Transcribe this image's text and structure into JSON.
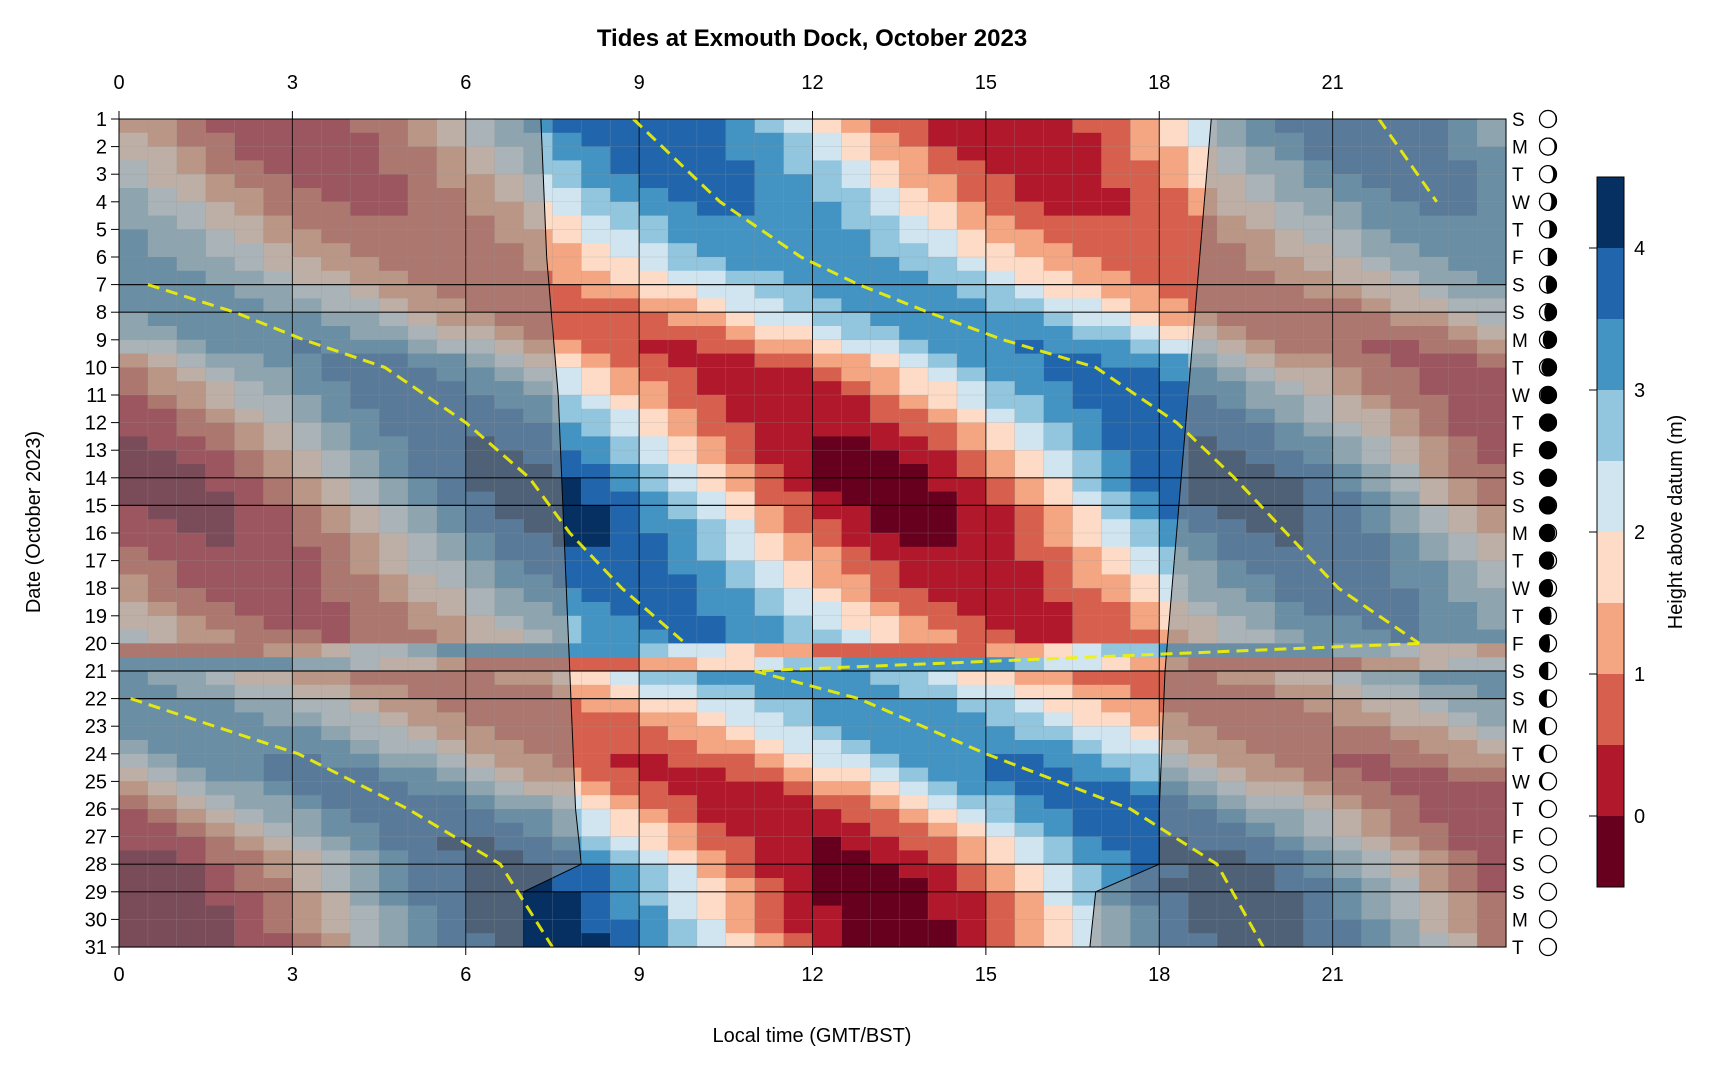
{
  "chart_data": {
    "type": "heatmap",
    "title": "Tides at Exmouth Dock, October 2023",
    "xlabel": "Local time (GMT/BST)",
    "ylabel": "Date (October 2023)",
    "xlim": [
      0,
      24
    ],
    "ylim": [
      1,
      31
    ],
    "x_ticks": [
      0,
      3,
      6,
      9,
      12,
      15,
      18,
      21
    ],
    "x_tick_labels": [
      "0",
      "3",
      "6",
      "9",
      "12",
      "15",
      "18",
      "21"
    ],
    "y_ticks": [
      1,
      2,
      3,
      4,
      5,
      6,
      7,
      8,
      9,
      10,
      11,
      12,
      13,
      14,
      15,
      16,
      17,
      18,
      19,
      20,
      21,
      22,
      23,
      24,
      25,
      26,
      27,
      28,
      29,
      30,
      31
    ],
    "y_tick_labels": [
      "1",
      "2",
      "3",
      "4",
      "5",
      "6",
      "7",
      "8",
      "9",
      "10",
      "11",
      "12",
      "13",
      "14",
      "15",
      "16",
      "17",
      "18",
      "19",
      "20",
      "21",
      "22",
      "23",
      "24",
      "25",
      "26",
      "27",
      "28",
      "29",
      "30",
      "31"
    ],
    "weekday_labels": [
      "S",
      "M",
      "T",
      "W",
      "T",
      "F",
      "S",
      "S",
      "M",
      "T",
      "W",
      "T",
      "F",
      "S",
      "S",
      "M",
      "T",
      "W",
      "T",
      "F",
      "S",
      "S",
      "M",
      "T",
      "W",
      "T",
      "F",
      "S",
      "S",
      "M",
      "T"
    ],
    "moon_illumination": [
      0.94,
      0.88,
      0.8,
      0.7,
      0.6,
      0.48,
      0.37,
      0.28,
      0.19,
      0.11,
      0.05,
      0.01,
      0.0,
      0.01,
      0.03,
      0.07,
      0.13,
      0.2,
      0.29,
      0.38,
      0.48,
      0.58,
      0.68,
      0.77,
      0.85,
      0.91,
      0.96,
      0.99,
      1.0,
      0.98,
      0.95
    ],
    "moon_waxing": [
      false,
      false,
      false,
      false,
      false,
      false,
      false,
      false,
      false,
      false,
      false,
      false,
      false,
      true,
      true,
      true,
      true,
      true,
      true,
      true,
      true,
      true,
      true,
      true,
      true,
      true,
      true,
      true,
      false,
      false,
      false
    ],
    "colorbar": {
      "label": "Height above datum (m)",
      "ticks": [
        0,
        1,
        2,
        3,
        4
      ],
      "tick_labels": [
        "0",
        "1",
        "2",
        "3",
        "4"
      ],
      "levels": [
        -0.5,
        0,
        0.5,
        1,
        1.5,
        2,
        2.5,
        3,
        3.5,
        4,
        4.5
      ],
      "colors": [
        "#67001f",
        "#b2182b",
        "#d6604d",
        "#f4a582",
        "#fddbc7",
        "#d1e5f0",
        "#92c5de",
        "#4393c3",
        "#2166ac",
        "#053061"
      ]
    },
    "tide_model": {
      "mean_level_m": 2.0,
      "amplitude_neap_m": 1.2,
      "amplitude_spring_m": 2.3,
      "neap_days": [
        7,
        22
      ],
      "spring_days": [
        14.5,
        29
      ],
      "high_water_times": [
        {
          "day": 1,
          "hw1": 8.9,
          "hw2": 21.8
        },
        {
          "day": 4,
          "hw1": 10.4,
          "hw2": 22.8
        },
        {
          "day": 6,
          "hw1": 11.8
        },
        {
          "day": 7,
          "hw1": 12.8,
          "hw2": 0.5
        },
        {
          "day": 8,
          "hw1": 14.0,
          "hw2": 2.0
        },
        {
          "day": 9,
          "hw1": 15.3,
          "hw2": 3.2
        },
        {
          "day": 10,
          "hw1": 16.9,
          "hw2": 4.6
        },
        {
          "day": 12,
          "hw1": 18.3,
          "hw2": 6.0
        },
        {
          "day": 14,
          "hw1": 19.3,
          "hw2": 7.1
        },
        {
          "day": 16,
          "hw1": 20.2,
          "hw2": 7.8
        },
        {
          "day": 18,
          "hw1": 21.1,
          "hw2": 8.7
        },
        {
          "day": 20,
          "hw1": 22.5,
          "hw2": 9.8
        },
        {
          "day": 21,
          "hw1": 11.0
        },
        {
          "day": 22,
          "hw1": 12.8,
          "hw2": 0.2
        },
        {
          "day": 24,
          "hw1": 15.0,
          "hw2": 3.1
        },
        {
          "day": 26,
          "hw1": 17.5,
          "hw2": 5.0
        },
        {
          "day": 28,
          "hw1": 19.0,
          "hw2": 6.6
        },
        {
          "day": 31,
          "hw1": 19.8,
          "hw2": 7.5
        }
      ]
    },
    "daylight_window": [
      {
        "day": 1,
        "sunrise": 7.3,
        "sunset": 18.9
      },
      {
        "day": 6,
        "sunrise": 7.4,
        "sunset": 18.7
      },
      {
        "day": 11,
        "sunrise": 7.6,
        "sunset": 18.5
      },
      {
        "day": 16,
        "sunrise": 7.7,
        "sunset": 18.3
      },
      {
        "day": 21,
        "sunrise": 7.8,
        "sunset": 18.1
      },
      {
        "day": 26,
        "sunrise": 7.9,
        "sunset": 18.0
      },
      {
        "day": 28,
        "sunrise": 8.0,
        "sunset": 18.0
      },
      {
        "day": 29,
        "sunrise": 7.0,
        "sunset": 16.9
      },
      {
        "day": 31,
        "sunrise": 7.0,
        "sunset": 16.8
      }
    ]
  }
}
